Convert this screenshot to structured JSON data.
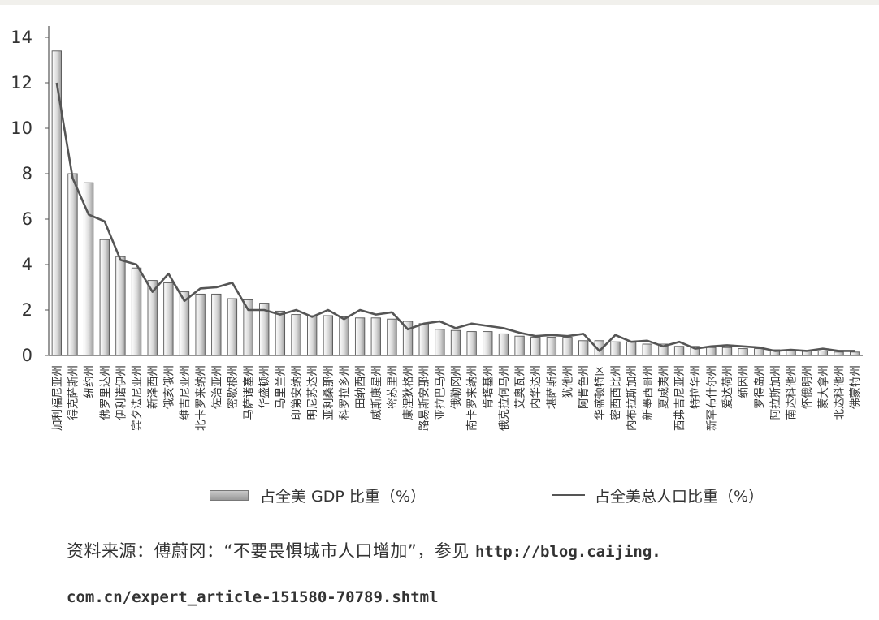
{
  "chart_data": {
    "type": "bar",
    "ylim": [
      0,
      14
    ],
    "yticks": [
      "0",
      "2",
      "4",
      "6",
      "8",
      "10",
      "12",
      "14"
    ],
    "grid": false,
    "legend_position": "bottom",
    "categories": [
      "加利福尼亚州",
      "得克萨斯州",
      "纽约州",
      "佛罗里达州",
      "伊利诺伊州",
      "宾夕法尼亚州",
      "新泽西州",
      "俄亥俄州",
      "维吉尼亚州",
      "北卡罗来纳州",
      "佐治亚州",
      "密歇根州",
      "马萨诸塞州",
      "华盛顿州",
      "马里兰州",
      "印第安纳州",
      "明尼苏达州",
      "亚利桑那州",
      "科罗拉多州",
      "田纳西州",
      "威斯康星州",
      "密苏里州",
      "康涅狄格州",
      "路易斯安那州",
      "亚拉巴马州",
      "俄勒冈州",
      "南卡罗来纳州",
      "肯塔基州",
      "俄克拉何马州",
      "艾奥瓦州",
      "内华达州",
      "堪萨斯州",
      "犹他州",
      "阿肯色州",
      "华盛顿特区",
      "密西西比州",
      "内布拉斯加州",
      "新墨西哥州",
      "夏威夷州",
      "西弗吉尼亚州",
      "特拉华州",
      "新罕布什尔州",
      "爱达荷州",
      "缅因州",
      "罗得岛州",
      "阿拉斯加州",
      "南达科他州",
      "怀俄明州",
      "蒙大拿州",
      "北达科他州",
      "佛蒙特州"
    ],
    "series": [
      {
        "name": "占全美 GDP 比重（%）",
        "type": "bar",
        "color": "#b4b4b4",
        "values": [
          13.4,
          8.0,
          7.6,
          5.1,
          4.35,
          3.85,
          3.3,
          3.2,
          2.8,
          2.7,
          2.7,
          2.5,
          2.45,
          2.3,
          1.95,
          1.8,
          1.75,
          1.75,
          1.7,
          1.65,
          1.65,
          1.6,
          1.5,
          1.4,
          1.15,
          1.1,
          1.05,
          1.05,
          0.95,
          0.85,
          0.8,
          0.8,
          0.8,
          0.65,
          0.65,
          0.6,
          0.6,
          0.5,
          0.5,
          0.4,
          0.4,
          0.35,
          0.35,
          0.3,
          0.3,
          0.25,
          0.2,
          0.2,
          0.2,
          0.15,
          0.15
        ]
      },
      {
        "name": "占全美总人口比重（%）",
        "type": "line",
        "color": "#555555",
        "values": [
          12.0,
          7.8,
          6.2,
          5.9,
          4.2,
          4.0,
          2.8,
          3.6,
          2.4,
          2.95,
          3.0,
          3.2,
          2.0,
          2.0,
          1.8,
          2.0,
          1.7,
          2.0,
          1.6,
          2.0,
          1.8,
          1.9,
          1.15,
          1.4,
          1.5,
          1.2,
          1.4,
          1.3,
          1.2,
          1.0,
          0.85,
          0.9,
          0.85,
          0.95,
          0.2,
          0.9,
          0.6,
          0.65,
          0.4,
          0.6,
          0.3,
          0.4,
          0.45,
          0.4,
          0.35,
          0.2,
          0.25,
          0.2,
          0.3,
          0.2,
          0.2
        ]
      }
    ]
  },
  "source": {
    "text": "资料来源：傅蔚冈：“不要畏惧城市人口增加”，参见 ",
    "url_part1": "http://blog.caijing.",
    "url_part2": "com.cn/expert_article-151580-70789.shtml"
  }
}
